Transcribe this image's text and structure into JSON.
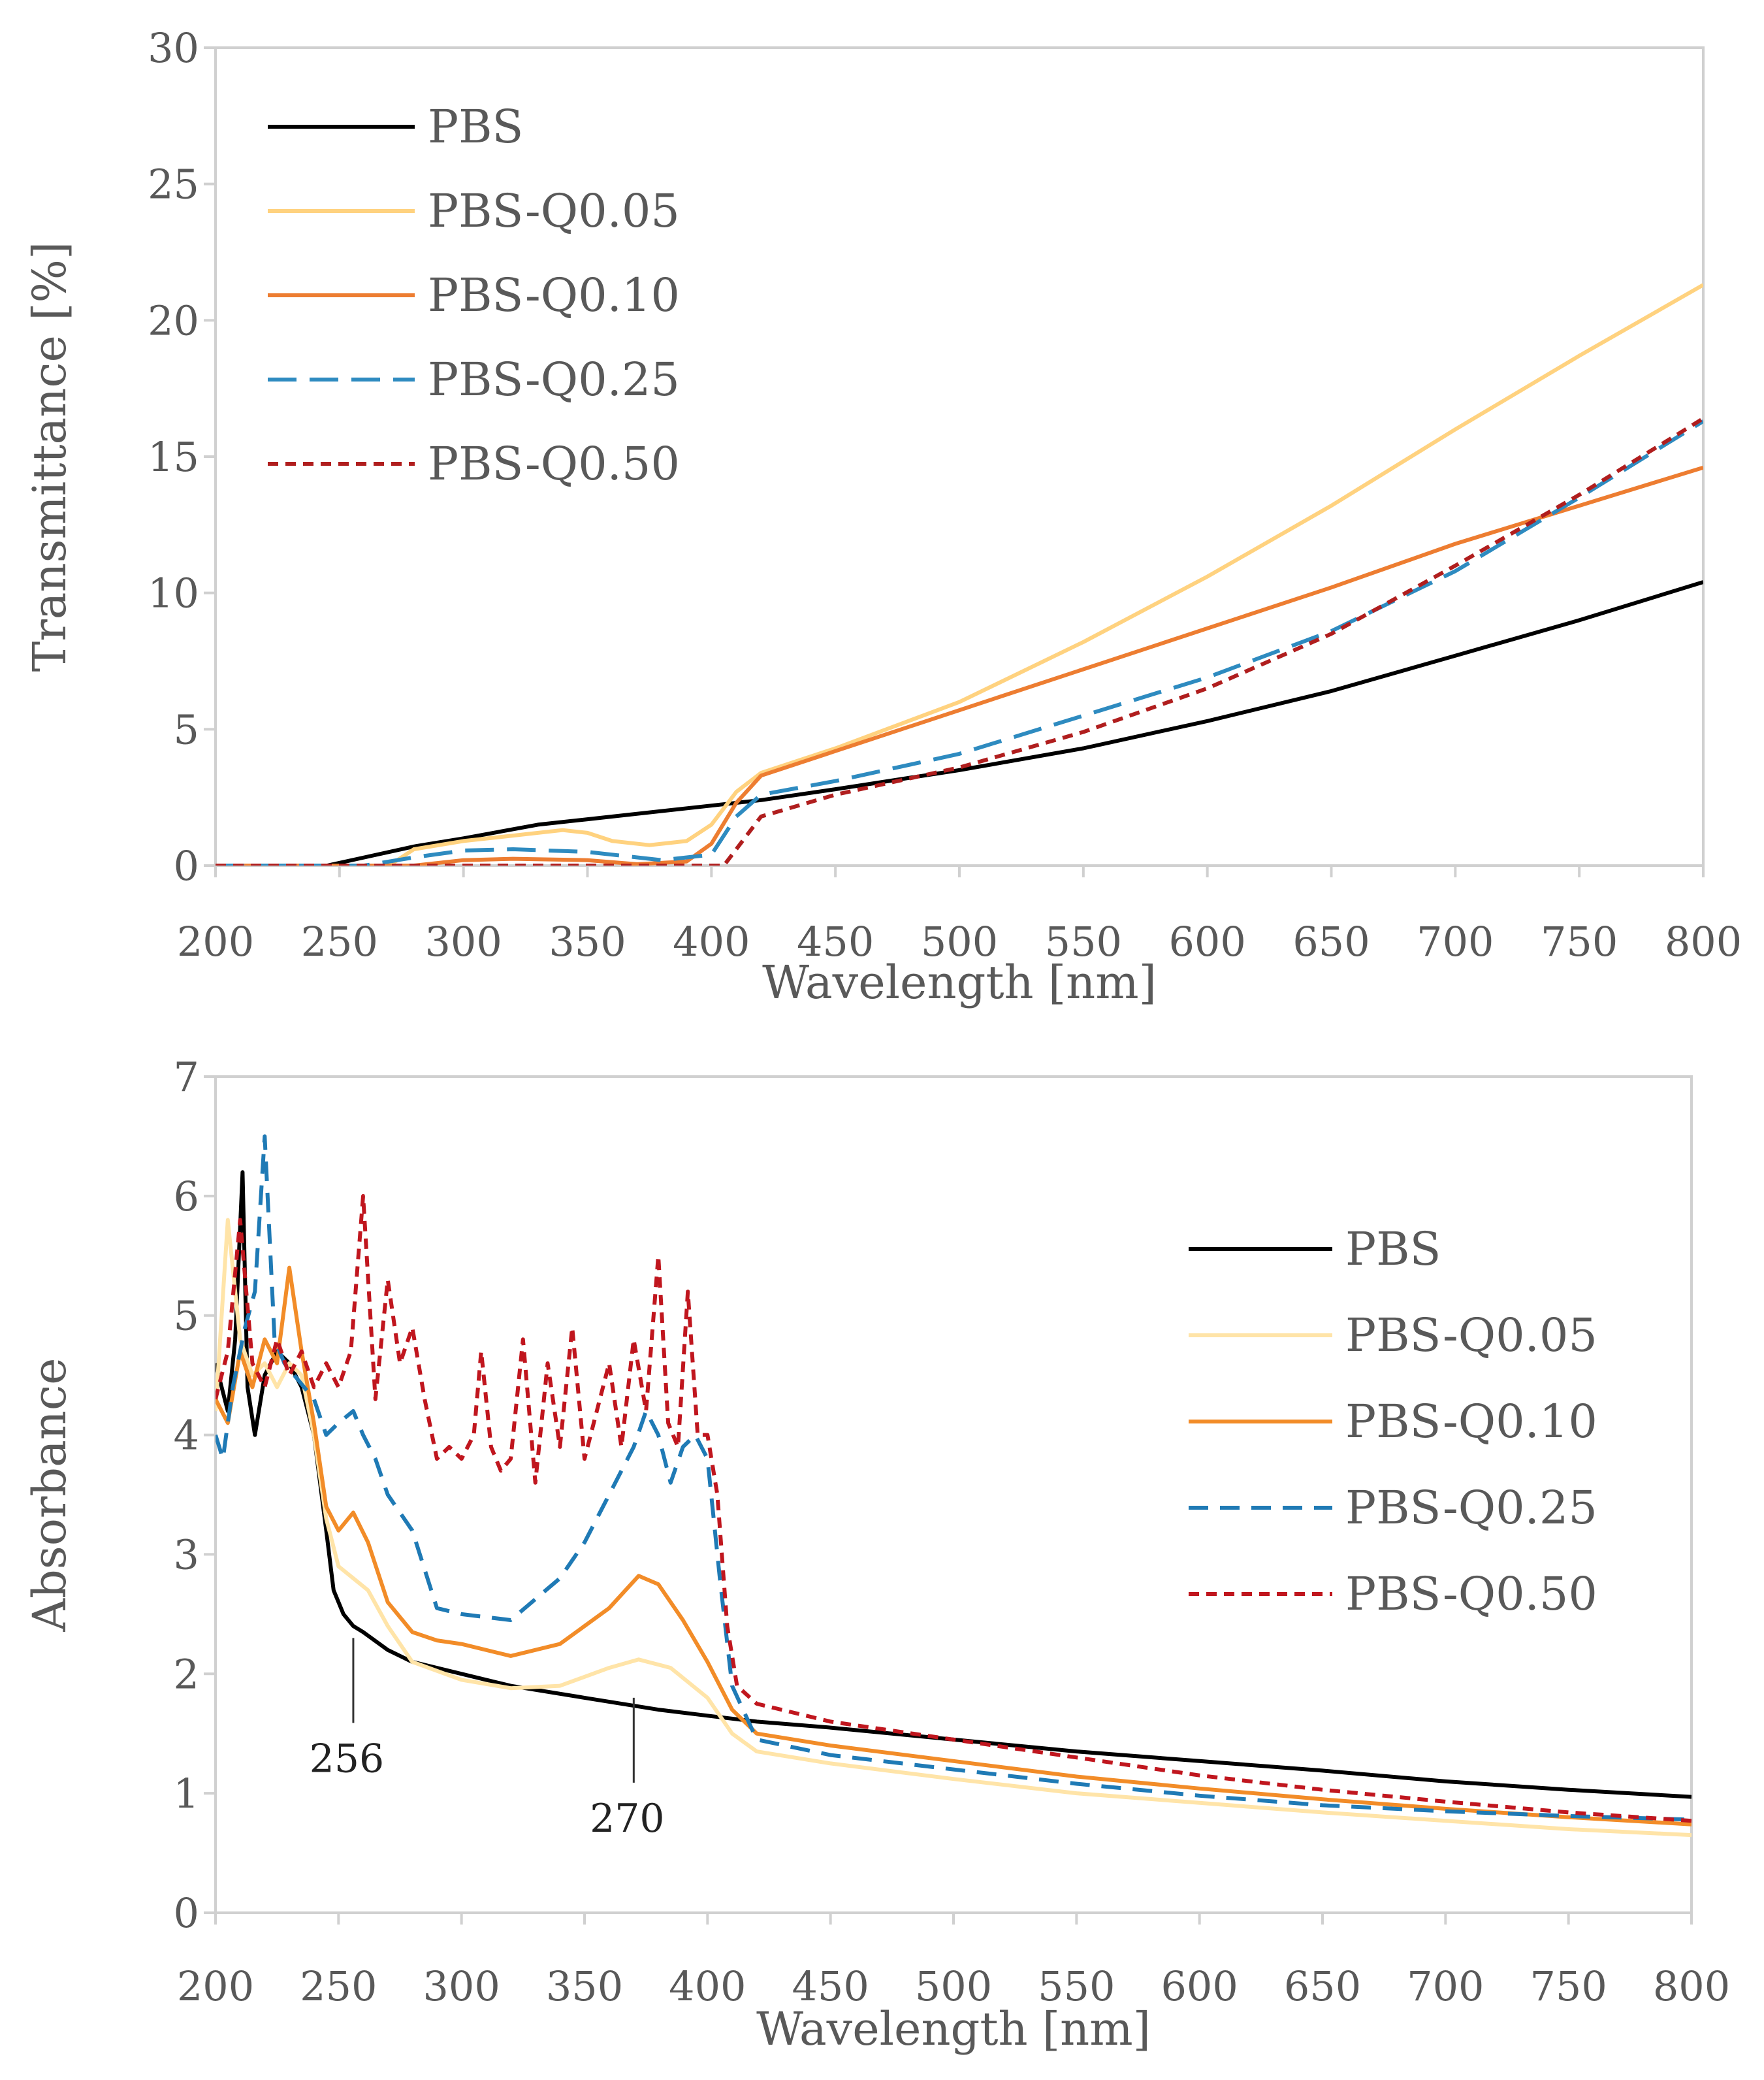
{
  "chart_data": [
    {
      "type": "line",
      "name": "transmittance",
      "title": "",
      "xlabel": "Wavelength [nm]",
      "ylabel": "Transmittance [%]",
      "xlim": [
        200,
        800
      ],
      "ylim": [
        0,
        30
      ],
      "xticks": [
        200,
        250,
        300,
        350,
        400,
        450,
        500,
        550,
        600,
        650,
        700,
        750,
        800
      ],
      "yticks": [
        0,
        5,
        10,
        15,
        20,
        25,
        30
      ],
      "grid": false,
      "legend_position": "top-left",
      "series": [
        {
          "name": "PBS",
          "color": "#000000",
          "dash": "solid",
          "x": [
            200,
            245,
            260,
            280,
            300,
            330,
            350,
            400,
            420,
            450,
            500,
            550,
            600,
            650,
            700,
            750,
            800
          ],
          "y": [
            0,
            0,
            0.3,
            0.7,
            1.0,
            1.5,
            1.7,
            2.2,
            2.4,
            2.8,
            3.5,
            4.3,
            5.3,
            6.4,
            7.7,
            9.0,
            10.4
          ]
        },
        {
          "name": "PBS-Q0.05",
          "color": "#FFD27F",
          "dash": "solid",
          "x": [
            200,
            270,
            280,
            300,
            320,
            340,
            350,
            360,
            375,
            390,
            400,
            410,
            420,
            450,
            500,
            550,
            600,
            650,
            700,
            750,
            800
          ],
          "y": [
            0,
            0,
            0.6,
            0.9,
            1.1,
            1.3,
            1.2,
            0.9,
            0.75,
            0.9,
            1.5,
            2.7,
            3.4,
            4.3,
            6.0,
            8.2,
            10.6,
            13.2,
            16.0,
            18.7,
            21.3
          ]
        },
        {
          "name": "PBS-Q0.10",
          "color": "#ED7D31",
          "dash": "solid",
          "x": [
            200,
            280,
            300,
            320,
            350,
            370,
            390,
            400,
            410,
            420,
            450,
            500,
            550,
            600,
            650,
            700,
            750,
            800
          ],
          "y": [
            0,
            0,
            0.2,
            0.25,
            0.2,
            0.05,
            0.15,
            0.8,
            2.3,
            3.3,
            4.2,
            5.7,
            7.2,
            8.7,
            10.2,
            11.8,
            13.2,
            14.6
          ]
        },
        {
          "name": "PBS-Q0.25",
          "color": "#2E8BC0",
          "dash": "long-dash",
          "x": [
            200,
            260,
            280,
            300,
            320,
            350,
            380,
            400,
            410,
            420,
            450,
            500,
            550,
            600,
            650,
            700,
            750,
            800
          ],
          "y": [
            0,
            0,
            0.3,
            0.55,
            0.6,
            0.5,
            0.2,
            0.4,
            1.8,
            2.6,
            3.1,
            4.1,
            5.5,
            6.9,
            8.6,
            10.8,
            13.5,
            16.3
          ]
        },
        {
          "name": "PBS-Q0.50",
          "color": "#B01E1E",
          "dash": "short-dash",
          "x": [
            200,
            405,
            410,
            420,
            450,
            500,
            550,
            600,
            650,
            700,
            750,
            800
          ],
          "y": [
            0,
            0,
            0.6,
            1.8,
            2.6,
            3.6,
            4.9,
            6.5,
            8.5,
            11.0,
            13.6,
            16.4
          ]
        }
      ]
    },
    {
      "type": "line",
      "name": "absorbance",
      "title": "",
      "xlabel": "Wavelength [nm]",
      "ylabel": "Absorbance",
      "xlim": [
        200,
        800
      ],
      "ylim": [
        0,
        7
      ],
      "xticks": [
        200,
        250,
        300,
        350,
        400,
        450,
        500,
        550,
        600,
        650,
        700,
        750,
        800
      ],
      "yticks": [
        0,
        1,
        2,
        3,
        4,
        5,
        6,
        7
      ],
      "grid": false,
      "legend_position": "right",
      "annotations": [
        {
          "text": "256",
          "x": 256,
          "y": 2.3
        },
        {
          "text": "270",
          "x": 370,
          "y": 1.8
        }
      ],
      "series": [
        {
          "name": "PBS",
          "color": "#000000",
          "dash": "solid",
          "x": [
            200,
            205,
            208,
            211,
            213,
            216,
            220,
            225,
            230,
            235,
            240,
            245,
            248,
            252,
            256,
            260,
            270,
            280,
            300,
            320,
            350,
            380,
            400,
            420,
            450,
            500,
            550,
            600,
            650,
            700,
            750,
            800
          ],
          "y": [
            4.6,
            4.2,
            4.8,
            6.2,
            4.4,
            4.0,
            4.5,
            4.7,
            4.6,
            4.4,
            4.0,
            3.2,
            2.7,
            2.5,
            2.4,
            2.35,
            2.2,
            2.1,
            2.0,
            1.9,
            1.8,
            1.7,
            1.65,
            1.6,
            1.55,
            1.45,
            1.35,
            1.27,
            1.19,
            1.1,
            1.03,
            0.97
          ]
        },
        {
          "name": "PBS-Q0.05",
          "color": "#FFE4A8",
          "dash": "solid",
          "x": [
            200,
            205,
            210,
            215,
            220,
            225,
            230,
            235,
            240,
            245,
            250,
            256,
            262,
            270,
            280,
            300,
            320,
            340,
            360,
            372,
            385,
            400,
            410,
            420,
            450,
            500,
            550,
            600,
            650,
            700,
            750,
            800
          ],
          "y": [
            4.2,
            5.8,
            4.8,
            4.5,
            4.6,
            4.4,
            4.6,
            4.5,
            4.0,
            3.3,
            2.9,
            2.8,
            2.7,
            2.4,
            2.1,
            1.95,
            1.88,
            1.9,
            2.05,
            2.12,
            2.05,
            1.8,
            1.5,
            1.35,
            1.25,
            1.12,
            1.0,
            0.92,
            0.84,
            0.77,
            0.7,
            0.65
          ]
        },
        {
          "name": "PBS-Q0.10",
          "color": "#F28C28",
          "dash": "solid",
          "x": [
            200,
            205,
            210,
            215,
            220,
            225,
            230,
            235,
            240,
            245,
            250,
            256,
            262,
            270,
            280,
            290,
            300,
            320,
            340,
            360,
            372,
            380,
            390,
            400,
            410,
            420,
            450,
            500,
            550,
            600,
            650,
            700,
            750,
            800
          ],
          "y": [
            4.3,
            4.1,
            4.7,
            4.4,
            4.8,
            4.6,
            5.4,
            4.7,
            4.1,
            3.4,
            3.2,
            3.35,
            3.1,
            2.6,
            2.35,
            2.28,
            2.25,
            2.15,
            2.25,
            2.55,
            2.82,
            2.75,
            2.45,
            2.1,
            1.7,
            1.5,
            1.4,
            1.27,
            1.14,
            1.04,
            0.95,
            0.87,
            0.8,
            0.74
          ]
        },
        {
          "name": "PBS-Q0.25",
          "color": "#1F7AB5",
          "dash": "dash",
          "x": [
            200,
            203,
            207,
            212,
            216,
            220,
            224,
            228,
            232,
            236,
            240,
            245,
            250,
            256,
            260,
            265,
            270,
            280,
            290,
            300,
            320,
            340,
            350,
            360,
            370,
            375,
            380,
            385,
            390,
            395,
            400,
            405,
            410,
            420,
            450,
            500,
            550,
            600,
            650,
            700,
            750,
            800
          ],
          "y": [
            4.0,
            3.8,
            4.4,
            4.9,
            5.2,
            6.5,
            4.8,
            4.6,
            4.5,
            4.4,
            4.3,
            4.0,
            4.1,
            4.2,
            4.0,
            3.8,
            3.5,
            3.2,
            2.55,
            2.5,
            2.45,
            2.8,
            3.1,
            3.5,
            3.9,
            4.2,
            4.0,
            3.6,
            3.9,
            4.0,
            3.8,
            2.8,
            1.9,
            1.45,
            1.32,
            1.2,
            1.08,
            0.98,
            0.9,
            0.85,
            0.81,
            0.78
          ]
        },
        {
          "name": "PBS-Q0.50",
          "color": "#C0161E",
          "dash": "short-dash",
          "x": [
            200,
            205,
            210,
            215,
            220,
            225,
            230,
            235,
            240,
            245,
            250,
            255,
            260,
            265,
            270,
            275,
            280,
            285,
            290,
            295,
            300,
            305,
            308,
            312,
            316,
            320,
            325,
            330,
            335,
            340,
            345,
            350,
            355,
            360,
            365,
            370,
            375,
            380,
            384,
            388,
            392,
            396,
            400,
            404,
            408,
            412,
            420,
            450,
            500,
            550,
            600,
            650,
            700,
            750,
            800
          ],
          "y": [
            4.3,
            4.7,
            5.8,
            4.6,
            4.4,
            4.8,
            4.5,
            4.7,
            4.4,
            4.6,
            4.4,
            4.7,
            6.0,
            4.3,
            5.3,
            4.6,
            4.9,
            4.3,
            3.8,
            3.9,
            3.8,
            4.0,
            4.7,
            3.9,
            3.7,
            3.8,
            4.8,
            3.6,
            4.6,
            3.9,
            4.9,
            3.8,
            4.2,
            4.6,
            3.9,
            4.8,
            4.2,
            5.5,
            4.1,
            3.9,
            5.2,
            4.0,
            4.0,
            3.5,
            2.4,
            1.9,
            1.75,
            1.6,
            1.45,
            1.3,
            1.15,
            1.03,
            0.93,
            0.84,
            0.77
          ]
        }
      ]
    }
  ]
}
